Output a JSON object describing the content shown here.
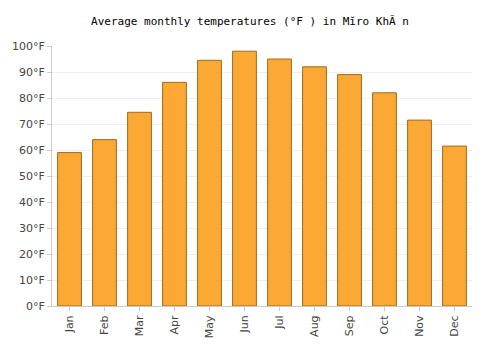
{
  "chart_data": {
    "type": "bar",
    "title": "Average monthly temperatures (°F ) in Mĭro KhĂ n",
    "categories": [
      "Jan",
      "Feb",
      "Mar",
      "Apr",
      "May",
      "Jun",
      "Jul",
      "Aug",
      "Sep",
      "Oct",
      "Nov",
      "Dec"
    ],
    "values": [
      59,
      64,
      74.5,
      86,
      94.5,
      98,
      95,
      92,
      89,
      82,
      71.5,
      61.5
    ],
    "color": "#fba834",
    "ylim": [
      0,
      100
    ],
    "yticks": [
      {
        "value": 0,
        "label": "0°F"
      },
      {
        "value": 10,
        "label": "10°F"
      },
      {
        "value": 20,
        "label": "20°F"
      },
      {
        "value": 30,
        "label": "30°F"
      },
      {
        "value": 40,
        "label": "40°F"
      },
      {
        "value": 50,
        "label": "50°F"
      },
      {
        "value": 60,
        "label": "60°F"
      },
      {
        "value": 70,
        "label": "70°F"
      },
      {
        "value": 80,
        "label": "80°F"
      },
      {
        "value": 90,
        "label": "90°F"
      },
      {
        "value": 100,
        "label": "100°F"
      }
    ],
    "grid": true
  }
}
